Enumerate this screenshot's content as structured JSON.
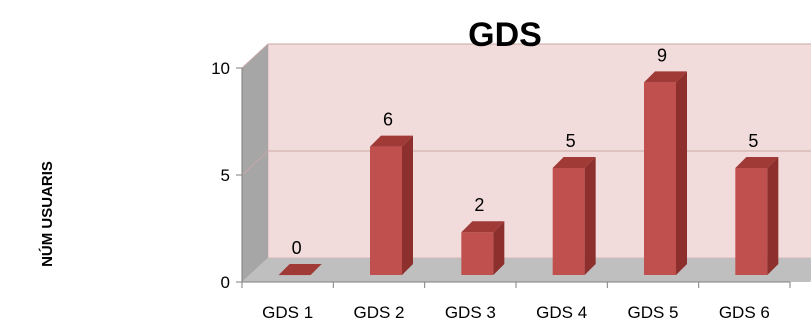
{
  "chart_data": {
    "type": "bar",
    "title": "GDS",
    "ylabel": "NÚM USUARIS",
    "xlabel": "",
    "categories": [
      "GDS 1",
      "GDS 2",
      "GDS 3",
      "GDS 4",
      "GDS 5",
      "GDS 6"
    ],
    "values": [
      0,
      6,
      2,
      5,
      9,
      5
    ],
    "data_labels": [
      "0",
      "6",
      "2",
      "5",
      "9",
      "5"
    ],
    "ylim": [
      0,
      10
    ],
    "yticks": [
      "0",
      "5",
      "10"
    ],
    "grid": true,
    "legend": "none",
    "style": "3d-column",
    "colors": {
      "bar_front": "#c0504d",
      "bar_side": "#8c2f2d",
      "bar_top": "#a03a37",
      "wall": "#f2dcdb",
      "wall_side": "#a6a6a6",
      "floor": "#bfbfbf",
      "gridline": "#c8a8a6"
    }
  }
}
